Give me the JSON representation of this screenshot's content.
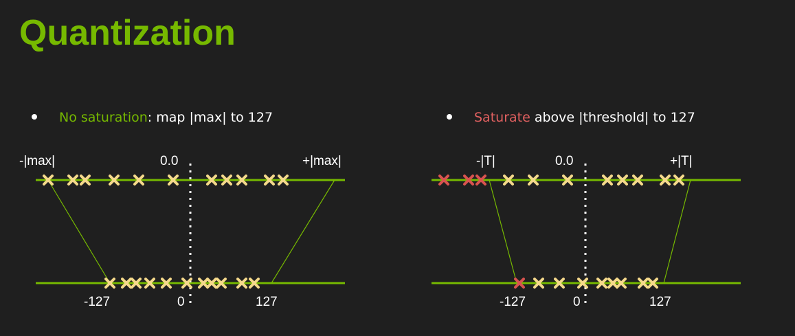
{
  "title": "Quantization",
  "left_panel": {
    "bullet_highlight": "No saturation",
    "bullet_rest": ": map |max| to 127",
    "label_neg": "-|max|",
    "label_zero_top": "0.0",
    "label_pos": "+|max|",
    "label_neg_q": "-127",
    "label_zero_bottom": "0",
    "label_pos_q": "127"
  },
  "right_panel": {
    "bullet_highlight": "Saturate",
    "bullet_rest": " above |threshold| to 127",
    "label_neg": "-|T|",
    "label_zero_top": "0.0",
    "label_pos": "+|T|",
    "label_neg_q": "-127",
    "label_zero_bottom": "0",
    "label_pos_q": "127"
  },
  "colors": {
    "title": "#76b900",
    "axis_line": "#76b900",
    "marker": "#f5d98b",
    "saturated_marker": "#d9534f",
    "background": "#1f1f1f"
  }
}
